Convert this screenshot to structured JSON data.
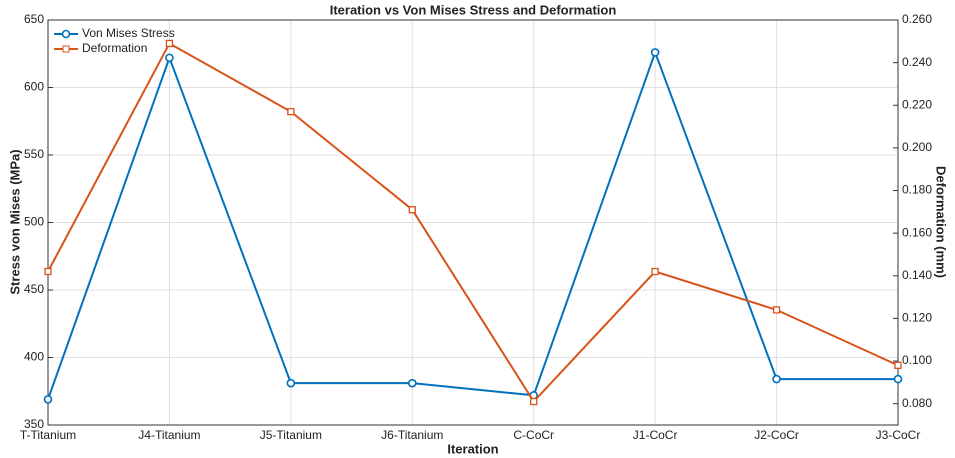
{
  "chart_data": {
    "type": "line",
    "title": "Iteration vs Von Mises Stress and Deformation",
    "xlabel": "Iteration",
    "ylabel": "Stress von Mises (MPa)",
    "y2label": "Deformation (mm)",
    "categories": [
      "T-Titanium",
      "J4-Titanium",
      "J5-Titanium",
      "J6-Titanium",
      "C-CoCr",
      "J1-CoCr",
      "J2-CoCr",
      "J3-CoCr"
    ],
    "series": [
      {
        "name": "Von Mises Stress",
        "color": "#0072bd",
        "marker": "circle",
        "values": [
          369,
          622,
          381,
          381,
          372,
          626,
          384,
          384
        ]
      },
      {
        "name": "Deformation",
        "color": "#d95319",
        "marker": "square",
        "axis": "y2",
        "values": [
          0.142,
          0.249,
          0.217,
          0.171,
          0.081,
          0.142,
          0.124,
          0.098
        ]
      }
    ],
    "ylim": [
      350,
      650
    ],
    "yticks": [
      350,
      400,
      450,
      500,
      550,
      600,
      650
    ],
    "y2lim": [
      0.07,
      0.26
    ],
    "y2ticks": [
      {
        "value": 0.08,
        "label": "0.080"
      },
      {
        "value": 0.1,
        "label": "0.100"
      },
      {
        "value": 0.12,
        "label": "0.120"
      },
      {
        "value": 0.14,
        "label": "0.140"
      },
      {
        "value": 0.16,
        "label": "0.160"
      },
      {
        "value": 0.18,
        "label": "0.180"
      },
      {
        "value": 0.2,
        "label": "0.200"
      },
      {
        "value": 0.22,
        "label": "0.220"
      },
      {
        "value": 0.24,
        "label": "0.240"
      },
      {
        "value": 0.26,
        "label": "0.260"
      }
    ],
    "grid": true,
    "legend": "upper left"
  }
}
